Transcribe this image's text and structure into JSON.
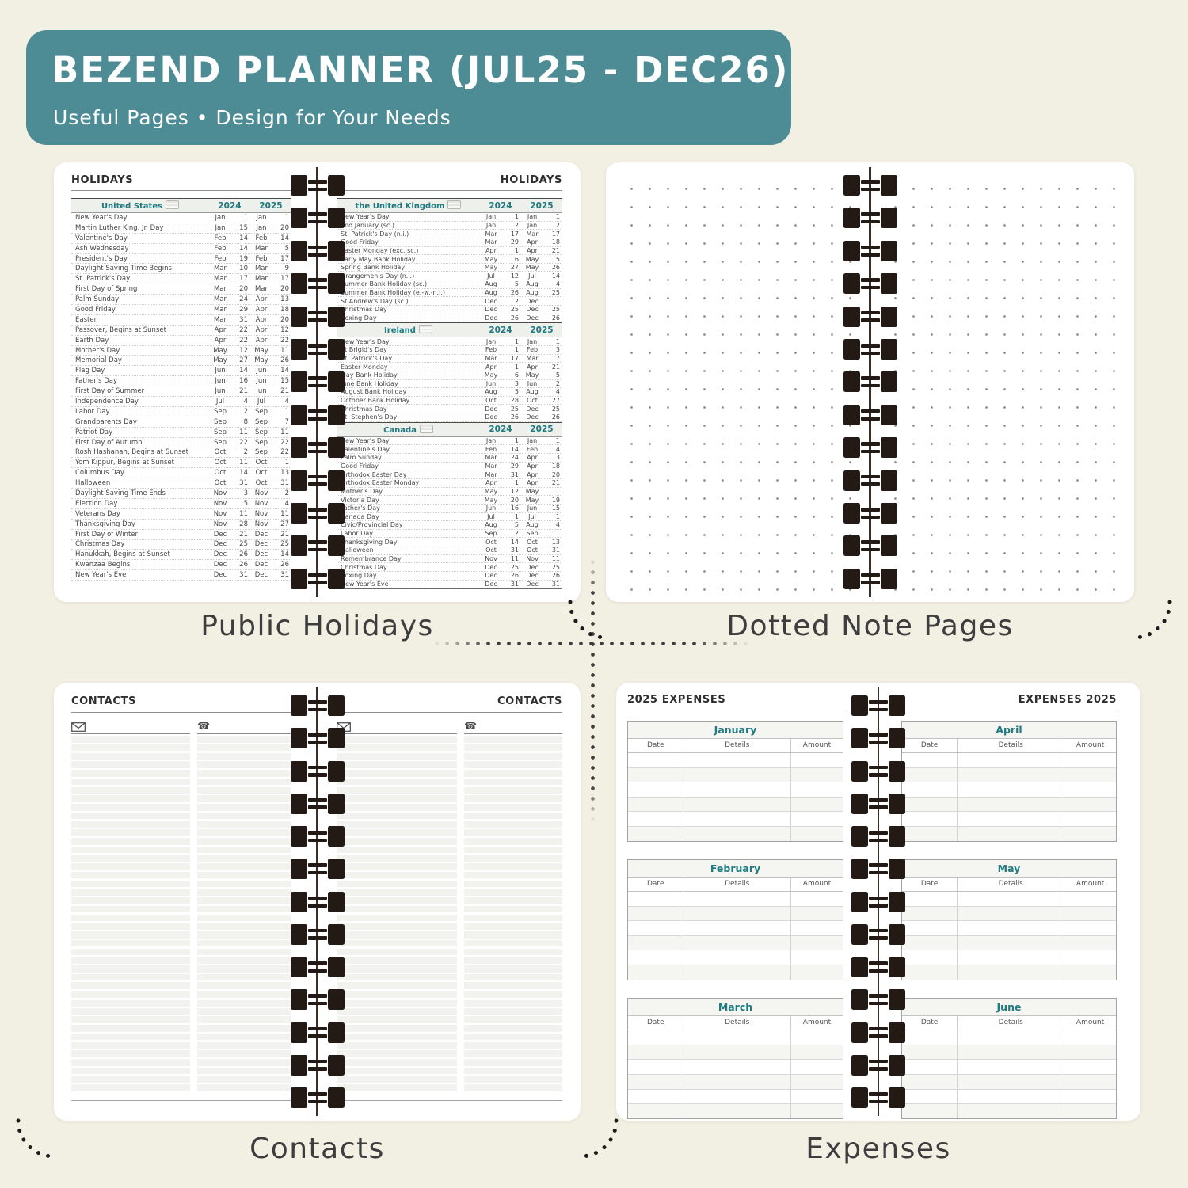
{
  "banner": {
    "title": "BEZEND PLANNER (JUL25 - DEC26)",
    "subtitle": "Useful Pages  •  Design for Your Needs",
    "bg_color": "#4d8c95",
    "text_color": "#ffffff"
  },
  "colors": {
    "page_background": "#f2efe3",
    "accent_teal": "#1f7a81",
    "spiral_dark": "#231a15",
    "caption_text": "#3d3d3d"
  },
  "captions": {
    "holidays": "Public Holidays",
    "dotted": "Dotted Note Pages",
    "contacts": "Contacts",
    "expenses": "Expenses"
  },
  "holidays_spread": {
    "left_page_title": "HOLIDAYS",
    "right_page_title": "HOLIDAYS",
    "left_sections": [
      {
        "country": "United States",
        "flag_icon": "us-flag-icon",
        "years": [
          "2024",
          "2025"
        ],
        "rows": [
          [
            "New Year's Day",
            "Jan",
            "1",
            "Jan",
            "1"
          ],
          [
            "Martin Luther King, Jr. Day",
            "Jan",
            "15",
            "Jan",
            "20"
          ],
          [
            "Valentine's Day",
            "Feb",
            "14",
            "Feb",
            "14"
          ],
          [
            "Ash Wednesday",
            "Feb",
            "14",
            "Mar",
            "5"
          ],
          [
            "President's Day",
            "Feb",
            "19",
            "Feb",
            "17"
          ],
          [
            "Daylight Saving Time Begins",
            "Mar",
            "10",
            "Mar",
            "9"
          ],
          [
            "St. Patrick's Day",
            "Mar",
            "17",
            "Mar",
            "17"
          ],
          [
            "First Day of Spring",
            "Mar",
            "20",
            "Mar",
            "20"
          ],
          [
            "Palm Sunday",
            "Mar",
            "24",
            "Apr",
            "13"
          ],
          [
            "Good Friday",
            "Mar",
            "29",
            "Apr",
            "18"
          ],
          [
            "Easter",
            "Mar",
            "31",
            "Apr",
            "20"
          ],
          [
            "Passover, Begins at Sunset",
            "Apr",
            "22",
            "Apr",
            "12"
          ],
          [
            "Earth Day",
            "Apr",
            "22",
            "Apr",
            "22"
          ],
          [
            "Mother's Day",
            "May",
            "12",
            "May",
            "11"
          ],
          [
            "Memorial Day",
            "May",
            "27",
            "May",
            "26"
          ],
          [
            "Flag Day",
            "Jun",
            "14",
            "Jun",
            "14"
          ],
          [
            "Father's Day",
            "Jun",
            "16",
            "Jun",
            "15"
          ],
          [
            "First Day of Summer",
            "Jun",
            "21",
            "Jun",
            "21"
          ],
          [
            "Independence Day",
            "Jul",
            "4",
            "Jul",
            "4"
          ],
          [
            "Labor Day",
            "Sep",
            "2",
            "Sep",
            "1"
          ],
          [
            "Grandparents Day",
            "Sep",
            "8",
            "Sep",
            "7"
          ],
          [
            "Patriot Day",
            "Sep",
            "11",
            "Sep",
            "11"
          ],
          [
            "First Day of Autumn",
            "Sep",
            "22",
            "Sep",
            "22"
          ],
          [
            "Rosh Hashanah, Begins at Sunset",
            "Oct",
            "2",
            "Sep",
            "22"
          ],
          [
            "Yom Kippur, Begins at Sunset",
            "Oct",
            "11",
            "Oct",
            "1"
          ],
          [
            "Columbus Day",
            "Oct",
            "14",
            "Oct",
            "13"
          ],
          [
            "Halloween",
            "Oct",
            "31",
            "Oct",
            "31"
          ],
          [
            "Daylight Saving Time Ends",
            "Nov",
            "3",
            "Nov",
            "2"
          ],
          [
            "Election Day",
            "Nov",
            "5",
            "Nov",
            "4"
          ],
          [
            "Veterans Day",
            "Nov",
            "11",
            "Nov",
            "11"
          ],
          [
            "Thanksgiving Day",
            "Nov",
            "28",
            "Nov",
            "27"
          ],
          [
            "First Day of Winter",
            "Dec",
            "21",
            "Dec",
            "21"
          ],
          [
            "Christmas Day",
            "Dec",
            "25",
            "Dec",
            "25"
          ],
          [
            "Hanukkah, Begins at Sunset",
            "Dec",
            "26",
            "Dec",
            "14"
          ],
          [
            "Kwanzaa Begins",
            "Dec",
            "26",
            "Dec",
            "26"
          ],
          [
            "New Year's Eve",
            "Dec",
            "31",
            "Dec",
            "31"
          ]
        ]
      }
    ],
    "right_sections": [
      {
        "country": "the United Kingdom",
        "flag_icon": "uk-flag-icon",
        "years": [
          "2024",
          "2025"
        ],
        "rows": [
          [
            "New Year's Day",
            "Jan",
            "1",
            "Jan",
            "1"
          ],
          [
            "2nd January (sc.)",
            "Jan",
            "2",
            "Jan",
            "2"
          ],
          [
            "St. Patrick's Day (n.i.)",
            "Mar",
            "17",
            "Mar",
            "17"
          ],
          [
            "Good Friday",
            "Mar",
            "29",
            "Apr",
            "18"
          ],
          [
            "Easter Monday (exc. sc.)",
            "Apr",
            "1",
            "Apr",
            "21"
          ],
          [
            "Early May Bank Holiday",
            "May",
            "6",
            "May",
            "5"
          ],
          [
            "Spring Bank Holiday",
            "May",
            "27",
            "May",
            "26"
          ],
          [
            "Orangemen's Day (n.i.)",
            "Jul",
            "12",
            "Jul",
            "14"
          ],
          [
            "Summer Bank Holiday (sc.)",
            "Aug",
            "5",
            "Aug",
            "4"
          ],
          [
            "Summer Bank Holiday (e.-w.-n.i.)",
            "Aug",
            "26",
            "Aug",
            "25"
          ],
          [
            "St Andrew's Day (sc.)",
            "Dec",
            "2",
            "Dec",
            "1"
          ],
          [
            "Christmas Day",
            "Dec",
            "25",
            "Dec",
            "25"
          ],
          [
            "Boxing Day",
            "Dec",
            "26",
            "Dec",
            "26"
          ]
        ]
      },
      {
        "country": "Ireland",
        "flag_icon": "ie-flag-icon",
        "years": [
          "2024",
          "2025"
        ],
        "rows": [
          [
            "New Year's Day",
            "Jan",
            "1",
            "Jan",
            "1"
          ],
          [
            "St Brigid's Day",
            "Feb",
            "1",
            "Feb",
            "3"
          ],
          [
            "St. Patrick's Day",
            "Mar",
            "17",
            "Mar",
            "17"
          ],
          [
            "Easter Monday",
            "Apr",
            "1",
            "Apr",
            "21"
          ],
          [
            "May Bank Holiday",
            "May",
            "6",
            "May",
            "5"
          ],
          [
            "June Bank Holiday",
            "Jun",
            "3",
            "Jun",
            "2"
          ],
          [
            "August Bank Holiday",
            "Aug",
            "5",
            "Aug",
            "4"
          ],
          [
            "October Bank Holiday",
            "Oct",
            "28",
            "Oct",
            "27"
          ],
          [
            "Christmas Day",
            "Dec",
            "25",
            "Dec",
            "25"
          ],
          [
            "St. Stephen's Day",
            "Dec",
            "26",
            "Dec",
            "26"
          ]
        ]
      },
      {
        "country": "Canada",
        "flag_icon": "ca-flag-icon",
        "years": [
          "2024",
          "2025"
        ],
        "rows": [
          [
            "New Year's Day",
            "Jan",
            "1",
            "Jan",
            "1"
          ],
          [
            "Valentine's Day",
            "Feb",
            "14",
            "Feb",
            "14"
          ],
          [
            "Palm Sunday",
            "Mar",
            "24",
            "Apr",
            "13"
          ],
          [
            "Good Friday",
            "Mar",
            "29",
            "Apr",
            "18"
          ],
          [
            "Orthodox Easter Day",
            "Mar",
            "31",
            "Apr",
            "20"
          ],
          [
            "Orthodox Easter Monday",
            "Apr",
            "1",
            "Apr",
            "21"
          ],
          [
            "Mother's Day",
            "May",
            "12",
            "May",
            "11"
          ],
          [
            "Victoria Day",
            "May",
            "20",
            "May",
            "19"
          ],
          [
            "Father's Day",
            "Jun",
            "16",
            "Jun",
            "15"
          ],
          [
            "Canada Day",
            "Jul",
            "1",
            "Jul",
            "1"
          ],
          [
            "Civic/Provincial Day",
            "Aug",
            "5",
            "Aug",
            "4"
          ],
          [
            "Labor Day",
            "Sep",
            "2",
            "Sep",
            "1"
          ],
          [
            "Thanksgiving Day",
            "Oct",
            "14",
            "Oct",
            "13"
          ],
          [
            "Halloween",
            "Oct",
            "31",
            "Oct",
            "31"
          ],
          [
            "Remembrance Day",
            "Nov",
            "11",
            "Nov",
            "11"
          ],
          [
            "Christmas Day",
            "Dec",
            "25",
            "Dec",
            "25"
          ],
          [
            "Boxing Day",
            "Dec",
            "26",
            "Dec",
            "26"
          ],
          [
            "New Year's Eve",
            "Dec",
            "31",
            "Dec",
            "31"
          ]
        ]
      }
    ]
  },
  "contacts_spread": {
    "left_page_title": "CONTACTS",
    "right_page_title": "CONTACTS",
    "column_icons": [
      "envelope-icon",
      "phone-icon"
    ],
    "rows_per_column": 42
  },
  "expenses_spread": {
    "left_page_title": "2025 EXPENSES",
    "right_page_title": "EXPENSES 2025",
    "columns": [
      "Date",
      "Details",
      "Amount"
    ],
    "left_months": [
      "January",
      "February",
      "March"
    ],
    "right_months": [
      "April",
      "May",
      "June"
    ],
    "rows_per_table": 6,
    "month_color": "#1f7a81"
  },
  "decor": {
    "spiral_loops_per_panel": 13
  }
}
